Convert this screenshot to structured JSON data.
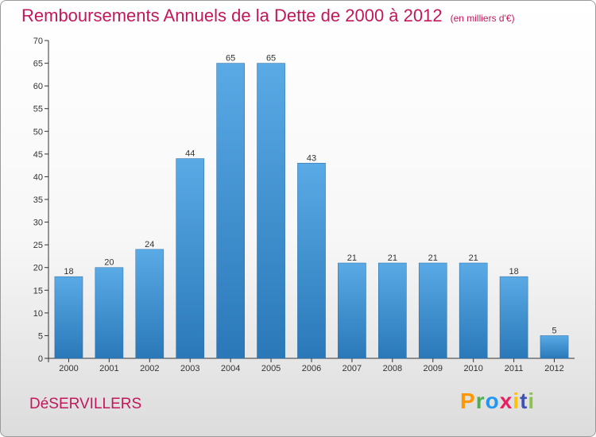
{
  "header": {
    "title": "Remboursements Annuels de la Dette de 2000 à 2012",
    "subtitle": "(en milliers d'€)"
  },
  "footer": {
    "town": "DéSERVILLERS",
    "logo": "Proxiti"
  },
  "colors": {
    "title": "#c2185b",
    "bar_top": "#5aaae6",
    "bar_bottom": "#2a78b8"
  },
  "chart_data": {
    "type": "bar",
    "title": "Remboursements Annuels de la Dette de 2000 à 2012",
    "subtitle": "(en milliers d'€)",
    "categories": [
      "2000",
      "2001",
      "2002",
      "2003",
      "2004",
      "2005",
      "2006",
      "2007",
      "2008",
      "2009",
      "2010",
      "2011",
      "2012"
    ],
    "values": [
      18,
      20,
      24,
      44,
      65,
      65,
      43,
      21,
      21,
      21,
      21,
      18,
      5
    ],
    "ylim": [
      0,
      70
    ],
    "yticks": [
      0,
      5,
      10,
      15,
      20,
      25,
      30,
      35,
      40,
      45,
      50,
      55,
      60,
      65,
      70
    ],
    "grid": false,
    "legend": "none",
    "data_labels": true
  }
}
